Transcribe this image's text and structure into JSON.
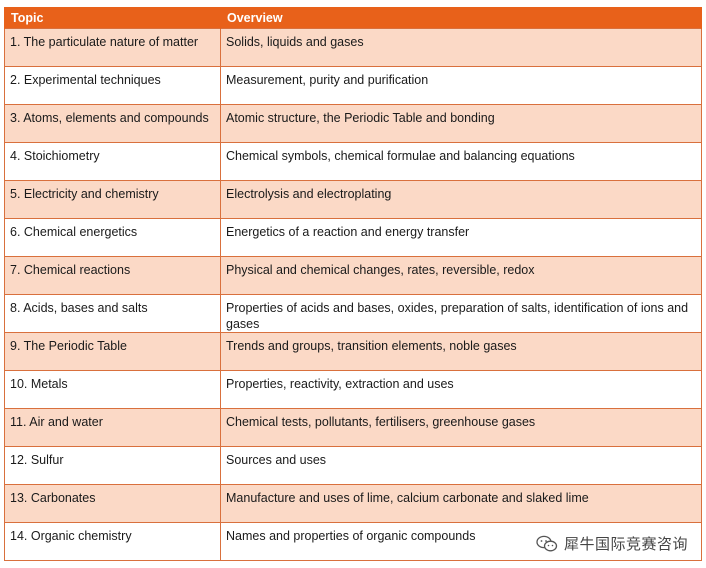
{
  "table": {
    "headers": [
      "Topic",
      "Overview"
    ],
    "rows": [
      {
        "topic": "1. The particulate nature of matter",
        "overview": "Solids, liquids and gases"
      },
      {
        "topic": "2. Experimental techniques",
        "overview": "Measurement, purity and purification"
      },
      {
        "topic": "3. Atoms, elements and compounds",
        "overview": "Atomic structure, the Periodic Table and bonding"
      },
      {
        "topic": "4. Stoichiometry",
        "overview": "Chemical symbols, chemical formulae and balancing equations"
      },
      {
        "topic": "5. Electricity and chemistry",
        "overview": "Electrolysis and electroplating"
      },
      {
        "topic": "6. Chemical energetics",
        "overview": "Energetics of a reaction and energy transfer"
      },
      {
        "topic": "7. Chemical reactions",
        "overview": "Physical and chemical changes, rates, reversible, redox"
      },
      {
        "topic": "8. Acids, bases and salts",
        "overview": "Properties of acids and bases, oxides, preparation of salts, identification of ions and gases"
      },
      {
        "topic": "9. The Periodic Table",
        "overview": "Trends and groups, transition elements, noble gases"
      },
      {
        "topic": "10. Metals",
        "overview": "Properties, reactivity, extraction and uses"
      },
      {
        "topic": "11. Air and water",
        "overview": "Chemical tests, pollutants, fertilisers, greenhouse gases"
      },
      {
        "topic": "12. Sulfur",
        "overview": "Sources and uses"
      },
      {
        "topic": "13. Carbonates",
        "overview": "Manufacture and uses of lime, calcium carbonate and slaked lime"
      },
      {
        "topic": "14. Organic chemistry",
        "overview": "Names and properties of organic compounds"
      }
    ]
  },
  "watermark": {
    "text": "犀牛国际竞赛咨询",
    "icon": "wechat-icon"
  },
  "colors": {
    "header_bg": "#e8611a",
    "shaded_row": "#fbd9c6",
    "border": "#d9703d"
  }
}
